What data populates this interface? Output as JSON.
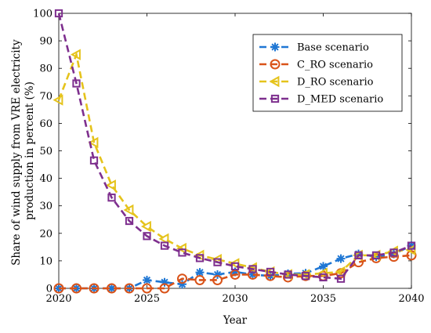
{
  "chart_data": {
    "type": "line",
    "xlabel": "Year",
    "ylabel_lines": [
      "Share of wind supply from VRE electricity",
      "production in percent (%)"
    ],
    "xlim": [
      2020,
      2040
    ],
    "ylim": [
      0,
      100
    ],
    "xticks": [
      2020,
      2025,
      2030,
      2035,
      2040
    ],
    "yticks": [
      0,
      10,
      20,
      30,
      40,
      50,
      60,
      70,
      80,
      90,
      100
    ],
    "grid": false,
    "legend_position": "top-right",
    "x": [
      2020,
      2021,
      2022,
      2023,
      2024,
      2025,
      2026,
      2027,
      2028,
      2029,
      2030,
      2031,
      2032,
      2033,
      2034,
      2035,
      2036,
      2037,
      2038,
      2039,
      2040
    ],
    "series": [
      {
        "name": "Base scenario",
        "color": "#1f77d4",
        "marker": "asterisk",
        "values": [
          0,
          0,
          0,
          0,
          0,
          3,
          2.2,
          1.5,
          5.8,
          5,
          6,
          5,
          4.5,
          5.3,
          5.5,
          8,
          10.8,
          12.5,
          11.5,
          12.5,
          15.5
        ]
      },
      {
        "name": "C_RO scenario",
        "color": "#d95319",
        "marker": "circle",
        "values": [
          0,
          0,
          0,
          0,
          0,
          0,
          0,
          3.5,
          3,
          3,
          5,
          5,
          4.5,
          4,
          4.5,
          4.5,
          5.5,
          9.5,
          11,
          11.5,
          12
        ]
      },
      {
        "name": "D_RO scenario",
        "color": "#e5c31c",
        "marker": "triangle-left",
        "values": [
          68.5,
          85,
          53,
          37.5,
          28.5,
          22.5,
          18,
          14.5,
          12,
          10.5,
          9,
          7.5,
          6,
          5,
          5,
          5.5,
          6,
          12,
          12,
          13.5,
          14
        ]
      },
      {
        "name": "D_MED scenario",
        "color": "#7e2f8e",
        "marker": "square",
        "values": [
          100,
          74.5,
          46.5,
          33,
          24.5,
          19,
          15.5,
          13,
          11,
          9.5,
          8,
          7,
          6,
          5,
          4.5,
          4,
          3.5,
          12,
          12,
          13,
          15.5
        ]
      }
    ]
  }
}
